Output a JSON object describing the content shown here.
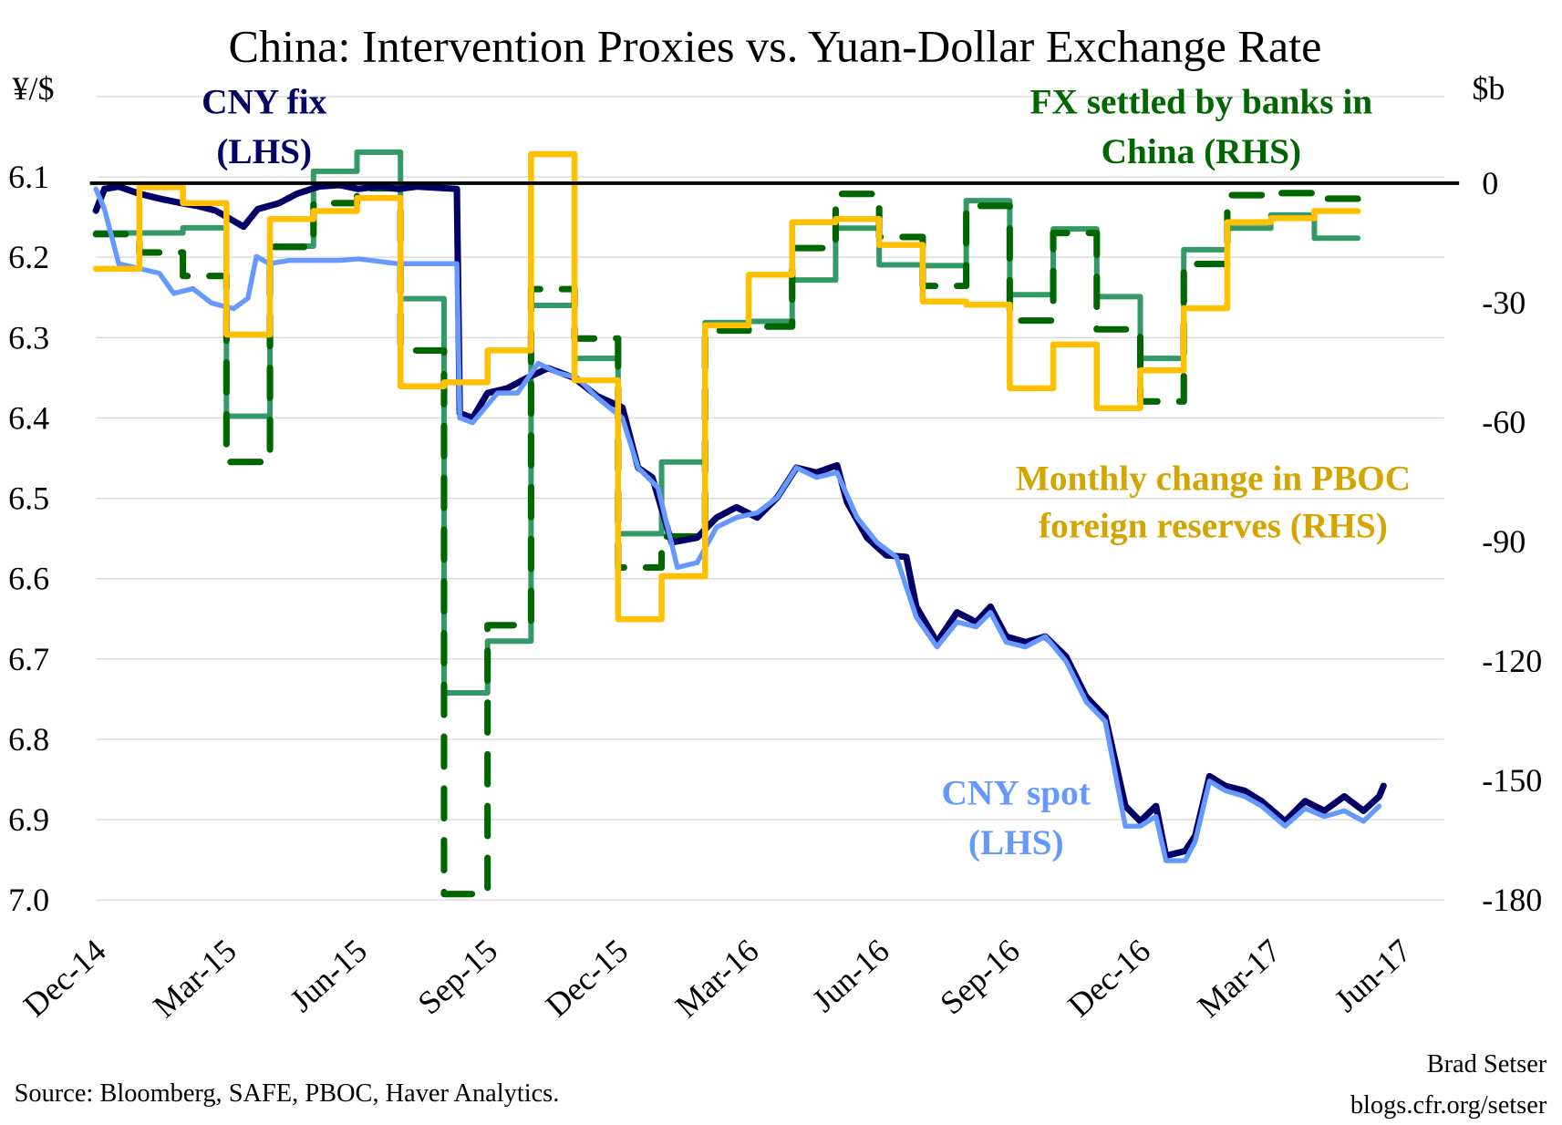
{
  "chart_data": {
    "type": "line",
    "title": "China: Intervention Proxies vs. Yuan-Dollar Exchange Rate",
    "left_axis": {
      "unit_label": "¥/$",
      "ylim": [
        6.0,
        7.0
      ],
      "ticks": [
        "6.1",
        "6.2",
        "6.3",
        "6.4",
        "6.5",
        "6.6",
        "6.7",
        "6.8",
        "6.9",
        "7.0"
      ],
      "inverted": true
    },
    "right_axis": {
      "unit_label": "$b",
      "ylim": [
        -180,
        22
      ],
      "ticks": [
        "0",
        "-30",
        "-60",
        "-90",
        "-120",
        "-150",
        "-180"
      ]
    },
    "x_ticks": [
      "Dec-14",
      "Mar-15",
      "Jun-15",
      "Sep-15",
      "Dec-15",
      "Mar-16",
      "Jun-16",
      "Sep-16",
      "Dec-16",
      "Mar-17",
      "Jun-17"
    ],
    "grid": true,
    "zero_line": 0,
    "months": [
      "Dec-14",
      "Jan-15",
      "Feb-15",
      "Mar-15",
      "Apr-15",
      "May-15",
      "Jun-15",
      "Jul-15",
      "Aug-15",
      "Sep-15",
      "Oct-15",
      "Nov-15",
      "Dec-15",
      "Jan-16",
      "Feb-16",
      "Mar-16",
      "Apr-16",
      "May-16",
      "Jun-16",
      "Jul-16",
      "Aug-16",
      "Sep-16",
      "Oct-16",
      "Nov-16",
      "Dec-16",
      "Jan-17",
      "Feb-17",
      "Mar-17",
      "Apr-17"
    ],
    "series": [
      {
        "key": "fx_settled_solid",
        "axis": "right",
        "style": "step",
        "color": "#339966",
        "values": [
          -12.5,
          -12.5,
          -11.2,
          -58.5,
          -15.8,
          3,
          7.8,
          -29,
          -128,
          -115,
          -30.7,
          -44,
          -88,
          -70,
          -35,
          -34.7,
          -24.3,
          -11.3,
          -20.5,
          -20.7,
          -4.4,
          -28,
          -11.5,
          -28.5,
          -44,
          -16.7,
          -11.3,
          -8,
          -13.8
        ]
      },
      {
        "key": "fx_settled_dashed",
        "name": "FX settled by banks in China (RHS)",
        "axis": "right",
        "style": "step-dashed",
        "color": "#006600",
        "values": [
          -12.8,
          -17.4,
          -23.3,
          -70,
          -16,
          -5,
          -1.3,
          -42,
          -178.5,
          -111,
          -26.6,
          -39,
          -96.5,
          -88.7,
          -37,
          -36,
          -16.3,
          -2.7,
          -13.5,
          -25.8,
          -5.7,
          -34.5,
          -12.5,
          -36.7,
          -54.8,
          -20.3,
          -3,
          -2.5,
          -3.9
        ]
      },
      {
        "key": "pboc_reserves",
        "name": "Monthly change in PBOC foreign reserves (RHS)",
        "axis": "right",
        "style": "step",
        "color": "#ffc000",
        "values": [
          -21.5,
          -1,
          -5,
          -38,
          -9,
          -7,
          -3.7,
          -51,
          -50,
          -42,
          7.3,
          -49.5,
          -109.5,
          -98.7,
          -35.7,
          -23,
          -9.8,
          -9,
          -15.5,
          -29.7,
          -30.5,
          -51.5,
          -40.5,
          -56.5,
          -47,
          -31.4,
          -9.8,
          -8.8,
          -7
        ]
      },
      {
        "key": "cny_spot",
        "name": "CNY spot (LHS)",
        "axis": "left",
        "style": "line",
        "color": "#6699ff",
        "points": [
          [
            "2014-12-01",
            6.115
          ],
          [
            "2014-12-07",
            6.14
          ],
          [
            "2014-12-17",
            6.208
          ],
          [
            "2015-01-01",
            6.214
          ],
          [
            "2015-01-15",
            6.22
          ],
          [
            "2015-01-25",
            6.245
          ],
          [
            "2015-02-08",
            6.239
          ],
          [
            "2015-02-21",
            6.257
          ],
          [
            "2015-03-06",
            6.264
          ],
          [
            "2015-03-16",
            6.251
          ],
          [
            "2015-03-22",
            6.199
          ],
          [
            "2015-03-31",
            6.208
          ],
          [
            "2015-04-14",
            6.204
          ],
          [
            "2015-04-27",
            6.204
          ],
          [
            "2015-05-19",
            6.204
          ],
          [
            "2015-06-02",
            6.202
          ],
          [
            "2015-06-30",
            6.208
          ],
          [
            "2015-08-10",
            6.208
          ],
          [
            "2015-08-12",
            6.4
          ],
          [
            "2015-08-21",
            6.406
          ],
          [
            "2015-09-08",
            6.369
          ],
          [
            "2015-09-22",
            6.369
          ],
          [
            "2015-10-06",
            6.332
          ],
          [
            "2015-10-20",
            6.344
          ],
          [
            "2015-11-03",
            6.35
          ],
          [
            "2015-11-17",
            6.375
          ],
          [
            "2015-12-04",
            6.4
          ],
          [
            "2015-12-15",
            6.462
          ],
          [
            "2015-12-29",
            6.487
          ],
          [
            "2016-01-12",
            6.586
          ],
          [
            "2016-01-26",
            6.58
          ],
          [
            "2016-02-09",
            6.536
          ],
          [
            "2016-02-23",
            6.524
          ],
          [
            "2016-03-07",
            6.518
          ],
          [
            "2016-03-21",
            6.499
          ],
          [
            "2016-04-04",
            6.462
          ],
          [
            "2016-04-18",
            6.474
          ],
          [
            "2016-05-02",
            6.468
          ],
          [
            "2016-05-16",
            6.524
          ],
          [
            "2016-05-30",
            6.555
          ],
          [
            "2016-06-13",
            6.573
          ],
          [
            "2016-06-27",
            6.648
          ],
          [
            "2016-07-11",
            6.685
          ],
          [
            "2016-07-25",
            6.654
          ],
          [
            "2016-08-08",
            6.66
          ],
          [
            "2016-08-18",
            6.642
          ],
          [
            "2016-08-29",
            6.679
          ],
          [
            "2016-09-12",
            6.685
          ],
          [
            "2016-09-26",
            6.672
          ],
          [
            "2016-10-10",
            6.703
          ],
          [
            "2016-10-24",
            6.753
          ],
          [
            "2016-11-07",
            6.778
          ],
          [
            "2016-11-21",
            6.908
          ],
          [
            "2016-12-01",
            6.908
          ],
          [
            "2016-12-12",
            6.896
          ],
          [
            "2016-12-19",
            6.951
          ],
          [
            "2017-01-02",
            6.951
          ],
          [
            "2017-01-09",
            6.927
          ],
          [
            "2017-01-19",
            6.852
          ],
          [
            "2017-01-30",
            6.864
          ],
          [
            "2017-02-13",
            6.871
          ],
          [
            "2017-02-25",
            6.883
          ],
          [
            "2017-03-11",
            6.908
          ],
          [
            "2017-03-25",
            6.886
          ],
          [
            "2017-04-08",
            6.896
          ],
          [
            "2017-04-22",
            6.889
          ],
          [
            "2017-05-05",
            6.902
          ],
          [
            "2017-05-16",
            6.883
          ]
        ]
      },
      {
        "key": "cny_fix",
        "name": "CNY fix (LHS)",
        "axis": "left",
        "style": "line",
        "color": "#000066",
        "points": [
          [
            "2014-12-01",
            6.142
          ],
          [
            "2014-12-07",
            6.115
          ],
          [
            "2014-12-17",
            6.112
          ],
          [
            "2015-01-01",
            6.121
          ],
          [
            "2015-01-15",
            6.127
          ],
          [
            "2015-02-01",
            6.133
          ],
          [
            "2015-02-11",
            6.136
          ],
          [
            "2015-02-24",
            6.142
          ],
          [
            "2015-03-13",
            6.162
          ],
          [
            "2015-03-23",
            6.14
          ],
          [
            "2015-04-07",
            6.133
          ],
          [
            "2015-04-20",
            6.121
          ],
          [
            "2015-05-05",
            6.112
          ],
          [
            "2015-05-19",
            6.11
          ],
          [
            "2015-06-02",
            6.115
          ],
          [
            "2015-06-16",
            6.112
          ],
          [
            "2015-06-30",
            6.115
          ],
          [
            "2015-07-13",
            6.112
          ],
          [
            "2015-08-10",
            6.115
          ],
          [
            "2015-08-12",
            6.394
          ],
          [
            "2015-08-21",
            6.4
          ],
          [
            "2015-09-01",
            6.369
          ],
          [
            "2015-09-15",
            6.363
          ],
          [
            "2015-09-29",
            6.35
          ],
          [
            "2015-10-13",
            6.338
          ],
          [
            "2015-10-31",
            6.35
          ],
          [
            "2015-11-17",
            6.373
          ],
          [
            "2015-12-04",
            6.387
          ],
          [
            "2015-12-15",
            6.462
          ],
          [
            "2015-12-25",
            6.474
          ],
          [
            "2016-01-08",
            6.555
          ],
          [
            "2016-01-26",
            6.549
          ],
          [
            "2016-02-09",
            6.524
          ],
          [
            "2016-02-23",
            6.511
          ],
          [
            "2016-03-07",
            6.524
          ],
          [
            "2016-03-21",
            6.499
          ],
          [
            "2016-04-04",
            6.462
          ],
          [
            "2016-04-18",
            6.468
          ],
          [
            "2016-05-02",
            6.459
          ],
          [
            "2016-05-09",
            6.505
          ],
          [
            "2016-05-23",
            6.549
          ],
          [
            "2016-06-06",
            6.571
          ],
          [
            "2016-06-20",
            6.573
          ],
          [
            "2016-06-27",
            6.635
          ],
          [
            "2016-07-11",
            6.679
          ],
          [
            "2016-07-25",
            6.642
          ],
          [
            "2016-08-08",
            6.654
          ],
          [
            "2016-08-18",
            6.635
          ],
          [
            "2016-08-29",
            6.672
          ],
          [
            "2016-09-12",
            6.679
          ],
          [
            "2016-09-26",
            6.672
          ],
          [
            "2016-10-10",
            6.697
          ],
          [
            "2016-10-24",
            6.747
          ],
          [
            "2016-11-07",
            6.772
          ],
          [
            "2016-11-21",
            6.883
          ],
          [
            "2016-12-01",
            6.902
          ],
          [
            "2016-12-12",
            6.883
          ],
          [
            "2016-12-19",
            6.945
          ],
          [
            "2017-01-02",
            6.939
          ],
          [
            "2017-01-09",
            6.92
          ],
          [
            "2017-01-19",
            6.846
          ],
          [
            "2017-01-30",
            6.858
          ],
          [
            "2017-02-13",
            6.864
          ],
          [
            "2017-02-25",
            6.877
          ],
          [
            "2017-03-11",
            6.902
          ],
          [
            "2017-03-25",
            6.877
          ],
          [
            "2017-04-08",
            6.889
          ],
          [
            "2017-04-22",
            6.871
          ],
          [
            "2017-05-05",
            6.889
          ],
          [
            "2017-05-16",
            6.871
          ],
          [
            "2017-05-19",
            6.858
          ]
        ]
      }
    ],
    "annotations": [
      {
        "key": "fix",
        "lines": [
          "CNY fix",
          "(LHS)"
        ],
        "color": "#000066"
      },
      {
        "key": "fx",
        "lines": [
          "FX settled by banks in",
          "China (RHS)"
        ],
        "color": "#006600"
      },
      {
        "key": "pboc",
        "lines": [
          "Monthly change in PBOC",
          "foreign reserves (RHS)"
        ],
        "color": "#d4a400"
      },
      {
        "key": "spot",
        "lines": [
          "CNY spot",
          "(LHS)"
        ],
        "color": "#6699ff"
      }
    ]
  },
  "footer": {
    "source": "Source: Bloomberg, SAFE, PBOC, Haver Analytics.",
    "author": "Brad Setser",
    "blog": "blogs.cfr.org/setser"
  }
}
